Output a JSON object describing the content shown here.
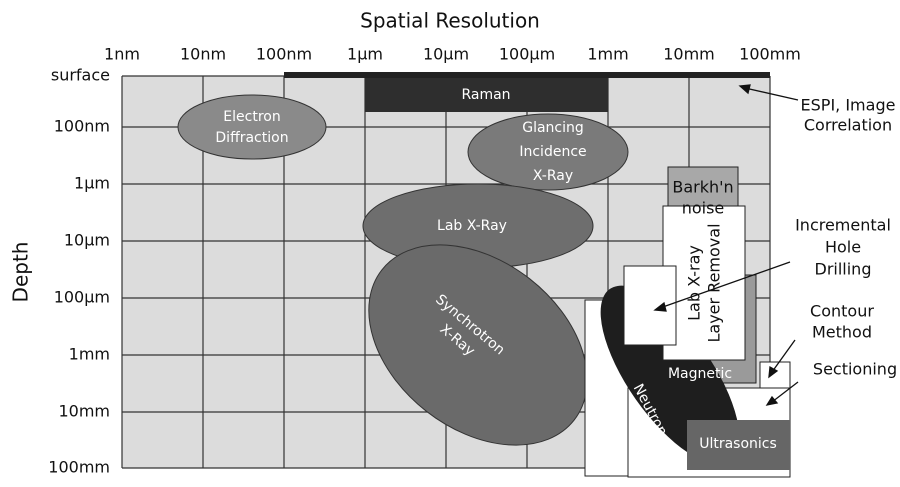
{
  "title": "Spatial Resolution",
  "y_axis_label": "Depth",
  "x_ticks": [
    "1nm",
    "10nm",
    "100nm",
    "1µm",
    "10µm",
    "100µm",
    "1mm",
    "10mm",
    "100mm"
  ],
  "y_ticks": [
    "surface",
    "100nm",
    "1µm",
    "10µm",
    "100µm",
    "1mm",
    "10mm",
    "100mm"
  ],
  "regions": {
    "raman": [
      "Raman"
    ],
    "electron_diffraction": [
      "Electron",
      "Diffraction"
    ],
    "glancing": [
      "Glancing",
      "Incidence",
      "X-Ray"
    ],
    "lab_xray": [
      "Lab X-Ray"
    ],
    "synchrotron": [
      "Synchrotron",
      "X-Ray"
    ],
    "barkhausen": [
      "Barkh'n",
      "noise"
    ],
    "layer_removal": [
      "Lab X-ray",
      "Layer Removal"
    ],
    "magnetic": [
      "Magnetic"
    ],
    "neutron": [
      "Neutron"
    ],
    "ultrasonics": [
      "Ultrasonics"
    ]
  },
  "annotations": {
    "espi": [
      "ESPI, Image",
      "Correlation"
    ],
    "hole_drilling": [
      "Incremental",
      "Hole",
      "Drilling"
    ],
    "contour": [
      "Contour",
      "Method"
    ],
    "sectioning": [
      "Sectioning"
    ]
  }
}
